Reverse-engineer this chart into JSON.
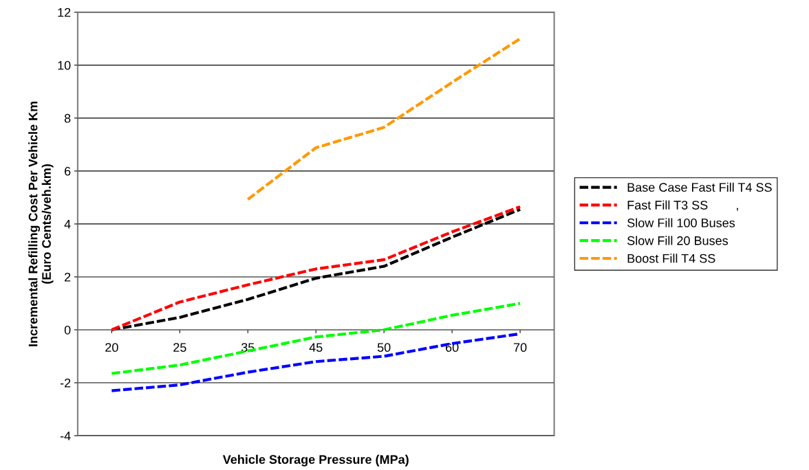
{
  "chart_data": {
    "type": "line",
    "xlabel": "Vehicle Storage Pressure (MPa)",
    "ylabel": "Incremental Refilling Cost Per Vehicle Km\n(Euro Cents/veh.km)",
    "categories": [
      "20",
      "25",
      "35",
      "45",
      "50",
      "60",
      "70"
    ],
    "ylim": [
      -4,
      12
    ],
    "yticks": [
      -4,
      -2,
      0,
      2,
      4,
      6,
      8,
      10,
      12
    ],
    "grid": "y",
    "legend": "right",
    "line_style": "dashed",
    "marker": "none",
    "series": [
      {
        "name": "Base Case Fast Fill T4 SS",
        "color": "#000000",
        "values": [
          0,
          0.47,
          1.15,
          1.95,
          2.4,
          3.5,
          4.55
        ]
      },
      {
        "name": "Fast Fill T3 SS        ,",
        "color": "#ff0000",
        "values": [
          0,
          1.05,
          1.7,
          2.3,
          2.65,
          3.7,
          4.65
        ]
      },
      {
        "name": "Slow Fill 100 Buses",
        "color": "#0000ff",
        "values": [
          -2.3,
          -2.08,
          -1.6,
          -1.2,
          -1.0,
          -0.52,
          -0.15
        ]
      },
      {
        "name": "Slow Fill 20 Buses",
        "color": "#00ff00",
        "values": [
          -1.65,
          -1.33,
          -0.8,
          -0.27,
          0,
          0.55,
          1.0
        ]
      },
      {
        "name": "Boost Fill T4 SS",
        "color": "#ff9900",
        "values": [
          null,
          null,
          4.93,
          6.88,
          7.65,
          9.35,
          11.0
        ]
      }
    ]
  }
}
